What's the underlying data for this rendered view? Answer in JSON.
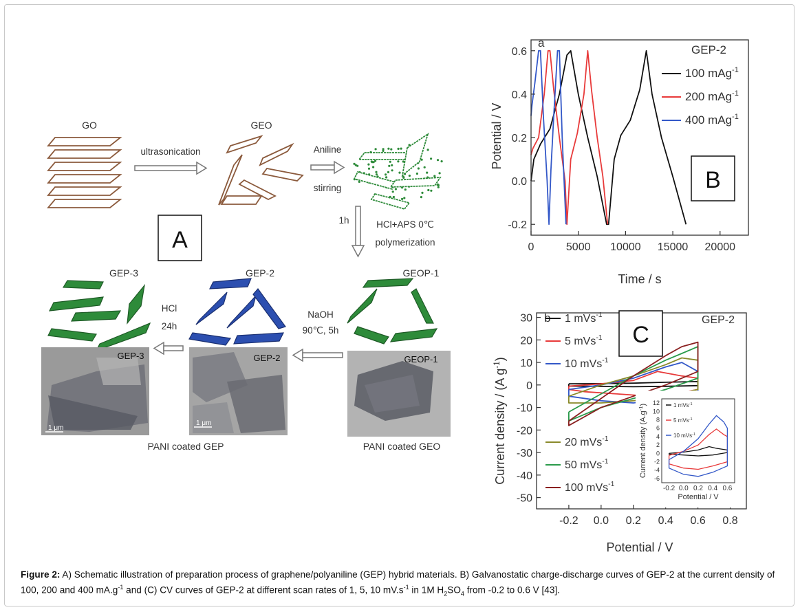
{
  "caption": {
    "label": "Figure 2:",
    "p1": " A) Schematic illustration of preparation process of graphene/polyaniline (GEP) hybrid materials. B) Galvanostatic charge-discharge curves of GEP-2 at the current density of 100, 200 and 400 mA.g",
    "p1sup": "-1",
    "p2": " and (C) CV curves of GEP-2 at different scan rates of 1, 5, 10 mV.s",
    "p2sup": "-1",
    "p3": " in 1M H",
    "p3sub": "2",
    "p4": "SO",
    "p4sub": "4",
    "p5": " from -0.2 to 0.6 V [43]."
  },
  "schematic": {
    "panel_label": "A",
    "go": "GO",
    "geo": "GEO",
    "ultrasonication": "ultrasonication",
    "aniline": "Aniline",
    "stirring": "stirring",
    "one_h": "1h",
    "hcl_aps": "HCl+APS  0℃",
    "polymerization": "polymerization",
    "geop1": "GEOP-1",
    "gep2": "GEP-2",
    "gep3": "GEP-3",
    "naoh": "NaOH",
    "naoh_cond": "90℃, 5h",
    "hcl": "HCl",
    "hcl_time": "24h",
    "tem_gep3": "GEP-3",
    "tem_gep2": "GEP-2",
    "tem_geop1": "GEOP-1",
    "scale": "1 μm",
    "pani_gep": "PANI coated GEP",
    "pani_geo": "PANI coated GEO",
    "colors": {
      "sheet_brown": "#8b5a3c",
      "pani_green": "#2e8b3a",
      "gep2_blue": "#2c4fb0"
    }
  },
  "chart_data": [
    {
      "type": "line",
      "panel_label": "B",
      "corner_label": "a",
      "sample": "GEP-2",
      "xlabel": "Time / s",
      "ylabel": "Potential / V",
      "xlim": [
        0,
        23000
      ],
      "ylim": [
        -0.25,
        0.65
      ],
      "xticks": [
        0,
        5000,
        10000,
        15000,
        20000
      ],
      "yticks": [
        -0.2,
        0.0,
        0.2,
        0.4,
        0.6
      ],
      "series": [
        {
          "name": "100 mAg",
          "unit_sup": "-1",
          "color": "#111111",
          "x": [
            0,
            300,
            1000,
            2000,
            3000,
            3800,
            4200,
            5000,
            6000,
            7000,
            8000,
            8200,
            8800,
            9500,
            10500,
            11500,
            12200,
            12800,
            13800,
            15000,
            16400
          ],
          "y": [
            0.0,
            0.1,
            0.17,
            0.24,
            0.4,
            0.58,
            0.6,
            0.4,
            0.2,
            0.02,
            -0.2,
            -0.2,
            0.1,
            0.21,
            0.28,
            0.42,
            0.6,
            0.4,
            0.2,
            0.02,
            -0.2
          ]
        },
        {
          "name": "200 mAg",
          "unit_sup": "-1",
          "color": "#e83a3a",
          "x": [
            0,
            200,
            800,
            1400,
            1800,
            2000,
            2400,
            3000,
            3600,
            3800,
            4200,
            4900,
            5600,
            6000,
            6400,
            7000,
            7600,
            8100
          ],
          "y": [
            0.12,
            0.15,
            0.2,
            0.4,
            0.6,
            0.6,
            0.42,
            0.2,
            0.0,
            -0.2,
            0.1,
            0.22,
            0.4,
            0.6,
            0.42,
            0.2,
            0.02,
            -0.2
          ]
        },
        {
          "name": "400 mAg",
          "unit_sup": "-1",
          "color": "#3358c8",
          "x": [
            0,
            100,
            400,
            800,
            1000,
            1300,
            1700,
            1900,
            2100,
            2400,
            2800,
            3000,
            3300,
            3700
          ],
          "y": [
            0.3,
            0.35,
            0.45,
            0.6,
            0.6,
            0.3,
            0.0,
            -0.2,
            0.05,
            0.3,
            0.6,
            0.6,
            0.2,
            -0.2
          ]
        }
      ]
    },
    {
      "type": "line",
      "panel_label": "C",
      "corner_label": "b",
      "sample": "GEP-2",
      "xlabel": "Potential / V",
      "ylabel": "Current density / (A g",
      "ylabel_sup": "-1",
      "ylabel_end": ")",
      "xlim": [
        -0.4,
        0.9
      ],
      "ylim": [
        -55,
        32
      ],
      "xticks": [
        -0.2,
        0.0,
        0.2,
        0.4,
        0.6,
        0.8
      ],
      "yticks": [
        30,
        20,
        10,
        0,
        -10,
        -20,
        -30,
        -40,
        -50
      ],
      "series": [
        {
          "name": "1 mVs",
          "unit_sup": "-1",
          "color": "#111111",
          "x": [
            -0.2,
            0.0,
            0.2,
            0.4,
            0.6,
            0.6,
            0.4,
            0.2,
            0.0,
            -0.2,
            -0.2
          ],
          "y": [
            0.5,
            0.6,
            0.8,
            1.2,
            1.5,
            -0.3,
            -0.6,
            -0.8,
            -0.6,
            -0.5,
            0.5
          ]
        },
        {
          "name": "5 mVs",
          "unit_sup": "-1",
          "color": "#e83a3a",
          "x": [
            -0.2,
            0.0,
            0.2,
            0.35,
            0.5,
            0.6,
            0.6,
            0.45,
            0.3,
            0.1,
            -0.1,
            -0.2,
            -0.2
          ],
          "y": [
            -0.5,
            0.5,
            2,
            6,
            4,
            3,
            -2,
            -4,
            -5,
            -4,
            -3,
            -2,
            -0.5
          ]
        },
        {
          "name": "10 mVs",
          "unit_sup": "-1",
          "color": "#3358c8",
          "x": [
            -0.2,
            0.0,
            0.2,
            0.4,
            0.5,
            0.6,
            0.6,
            0.4,
            0.2,
            0.0,
            -0.2,
            -0.2
          ],
          "y": [
            -2,
            0,
            3,
            8,
            10,
            6,
            -4,
            -6,
            -8,
            -7,
            -5,
            -2
          ]
        },
        {
          "name": "20 mVs",
          "unit_sup": "-1",
          "color": "#8a8a2a",
          "x": [
            -0.2,
            0.0,
            0.2,
            0.4,
            0.5,
            0.6,
            0.6,
            0.4,
            0.2,
            0.0,
            -0.2,
            -0.2
          ],
          "y": [
            -5,
            0,
            4,
            9,
            12,
            11,
            -2,
            -5,
            -7,
            -8,
            -8,
            -5
          ]
        },
        {
          "name": "50 mVs",
          "unit_sup": "-1",
          "color": "#2a9a4a",
          "x": [
            -0.2,
            0.0,
            0.2,
            0.4,
            0.5,
            0.6,
            0.6,
            0.4,
            0.2,
            0.0,
            -0.2,
            -0.2
          ],
          "y": [
            -12,
            -4,
            4,
            11,
            14,
            17,
            3,
            -2,
            -6,
            -10,
            -16,
            -12
          ]
        },
        {
          "name": "100 mVs",
          "unit_sup": "-1",
          "color": "#8a2020",
          "x": [
            -0.2,
            0.0,
            0.2,
            0.4,
            0.5,
            0.6,
            0.6,
            0.4,
            0.2,
            0.0,
            -0.2,
            -0.2
          ],
          "y": [
            -16,
            -6,
            4,
            13,
            17,
            19,
            6,
            0,
            -5,
            -10,
            -18,
            -16
          ]
        }
      ],
      "inset": {
        "xlabel": "Potential / V",
        "ylabel": "Current density (A.g",
        "ylabel_sup": "-1",
        "ylabel_end": ")",
        "xticks": [
          "-0.2",
          "0.0",
          "0.2",
          "0.4",
          "0.6"
        ],
        "yticks": [
          "12",
          "10",
          "8",
          "6",
          "4",
          "2",
          "0",
          "-2",
          "-4",
          "-6"
        ],
        "xlim": [
          -0.3,
          0.7
        ],
        "ylim": [
          -7,
          13
        ],
        "series": [
          {
            "name": "1 mVs",
            "unit_sup": "-1",
            "color": "#111111",
            "x": [
              -0.2,
              0.0,
              0.2,
              0.35,
              0.45,
              0.6,
              0.6,
              0.4,
              0.2,
              0.0,
              -0.2,
              -0.2
            ],
            "y": [
              0.0,
              0.3,
              0.8,
              1.6,
              1.2,
              0.8,
              0.2,
              -0.4,
              -0.6,
              -0.4,
              -0.2,
              0.0
            ]
          },
          {
            "name": "5 mVs",
            "unit_sup": "-1",
            "color": "#e83a3a",
            "x": [
              -0.2,
              0.0,
              0.2,
              0.35,
              0.45,
              0.55,
              0.6,
              0.6,
              0.4,
              0.2,
              0.0,
              -0.2,
              -0.2
            ],
            "y": [
              -0.5,
              0.5,
              2.0,
              4.5,
              5.8,
              4.5,
              4.0,
              -2.0,
              -3.0,
              -3.8,
              -3.5,
              -2.5,
              -0.5
            ]
          },
          {
            "name": "10 mVs",
            "unit_sup": "-1",
            "color": "#3358c8",
            "x": [
              -0.2,
              0.0,
              0.2,
              0.35,
              0.45,
              0.55,
              0.6,
              0.6,
              0.4,
              0.2,
              0.0,
              -0.2,
              -0.2
            ],
            "y": [
              -1.5,
              0.5,
              3.5,
              7.0,
              9.0,
              7.5,
              6.0,
              -3.0,
              -4.5,
              -5.5,
              -5.0,
              -3.5,
              -1.5
            ]
          }
        ]
      }
    }
  ]
}
